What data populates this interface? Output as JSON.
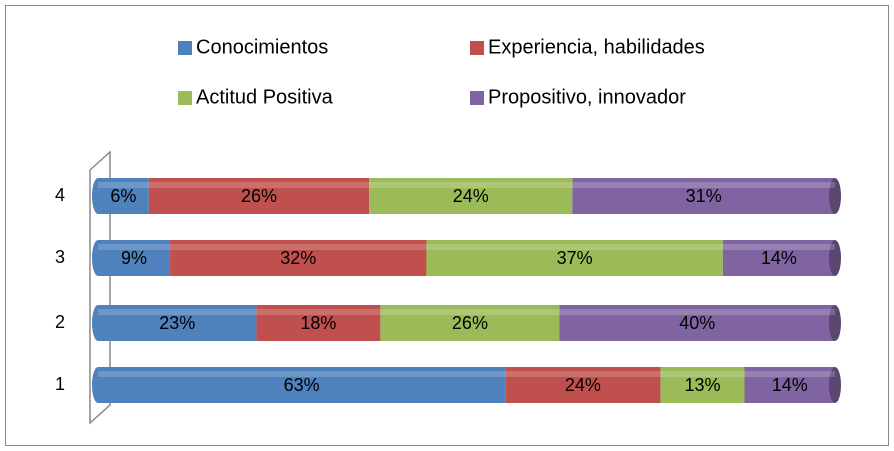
{
  "chart_data": {
    "type": "stacked_bar_100",
    "orientation": "horizontal",
    "categories": [
      "1",
      "2",
      "3",
      "4"
    ],
    "series": [
      {
        "name": "Conocimientos",
        "color": "#4f81bd",
        "values": [
          63,
          23,
          9,
          6
        ],
        "value_labels": [
          "63%",
          "23%",
          "9%",
          "6%"
        ]
      },
      {
        "name": "Experiencia, habilidades",
        "color": "#c0504d",
        "values": [
          24,
          18,
          32,
          26
        ],
        "value_labels": [
          "24%",
          "18%",
          "32%",
          "26%"
        ]
      },
      {
        "name": "Actitud Positiva",
        "color": "#9bbb59",
        "values": [
          13,
          26,
          37,
          24
        ],
        "value_labels": [
          "13%",
          "26%",
          "37%",
          "24%"
        ]
      },
      {
        "name": "Propositivo, innovador",
        "color": "#8064a2",
        "values": [
          14,
          40,
          14,
          31
        ],
        "value_labels": [
          "14%",
          "40%",
          "14%",
          "31%"
        ]
      }
    ],
    "legend": "top"
  }
}
